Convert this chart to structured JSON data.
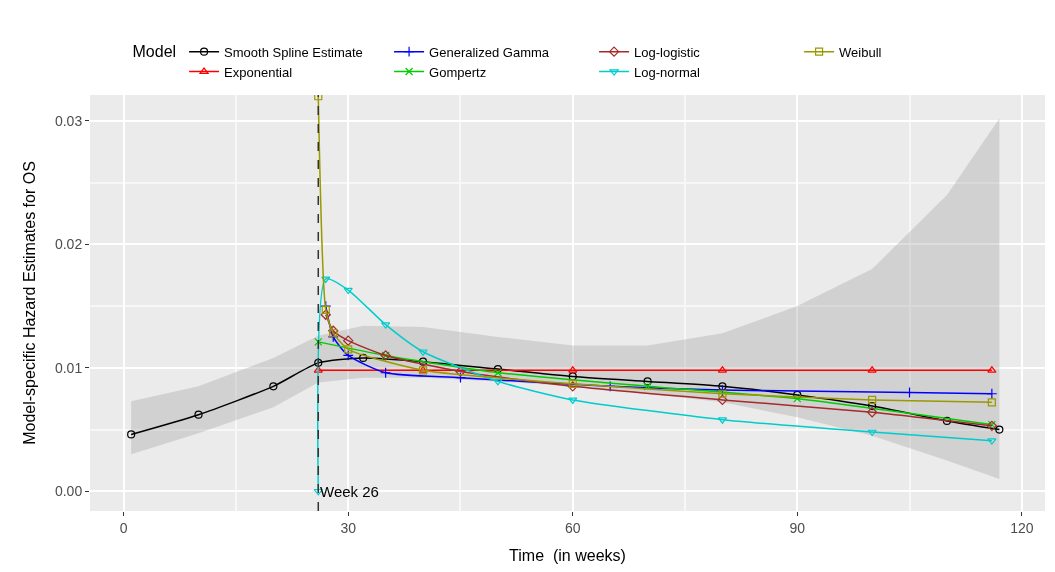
{
  "chart_data": {
    "type": "line",
    "xlabel": "Time  (in weeks)",
    "ylabel": "Model-specific Hazard Estimates for OS",
    "legend_title": "Model",
    "legend": "top",
    "grid": true,
    "xlim": [
      -4.5,
      123.1
    ],
    "ylim": [
      -0.0016,
      0.0321
    ],
    "xticks": [
      0,
      30,
      60,
      90,
      120
    ],
    "yticks": [
      {
        "value": 0,
        "label": "0.00"
      },
      {
        "value": 0.01,
        "label": "0.01"
      },
      {
        "value": 0.02,
        "label": "0.02"
      },
      {
        "value": 0.03,
        "label": "0.03"
      }
    ],
    "series": [
      {
        "name": "Smooth Spline Estimate",
        "color": "#000000",
        "marker": "circle",
        "x": [
          1,
          10,
          20,
          26,
          32,
          40,
          50,
          60,
          70,
          80,
          90,
          100,
          110,
          117
        ],
        "values": [
          0.0046,
          0.0062,
          0.0085,
          0.0104,
          0.0108,
          0.0105,
          0.0099,
          0.0093,
          0.0089,
          0.0085,
          0.0078,
          0.0069,
          0.0057,
          0.005
        ],
        "lower": [
          0.003,
          0.0047,
          0.0068,
          0.0088,
          0.0092,
          0.0092,
          0.0089,
          0.0085,
          0.0079,
          0.0072,
          0.006,
          0.0045,
          0.0025,
          0.001
        ],
        "upper": [
          0.0073,
          0.0085,
          0.0108,
          0.0126,
          0.0134,
          0.0133,
          0.0125,
          0.0118,
          0.0118,
          0.0128,
          0.015,
          0.018,
          0.024,
          0.0302
        ]
      },
      {
        "name": "Exponential",
        "color": "#ff0000",
        "marker": "triangle",
        "x": [
          26,
          40,
          60,
          80,
          100,
          116
        ],
        "values": [
          0.0098,
          0.0098,
          0.0098,
          0.0098,
          0.0098,
          0.0098
        ]
      },
      {
        "name": "Generalized Gamma",
        "color": "#0000ff",
        "marker": "cross",
        "x": [
          27,
          28,
          30,
          35,
          45,
          65,
          80,
          105,
          116
        ],
        "values": [
          0.015,
          0.0125,
          0.011,
          0.0096,
          0.0092,
          0.0085,
          0.0082,
          0.008,
          0.0079
        ]
      },
      {
        "name": "Gompertz",
        "color": "#00cc00",
        "marker": "x",
        "x": [
          26,
          35,
          50,
          70,
          90,
          116
        ],
        "values": [
          0.0121,
          0.011,
          0.0096,
          0.0085,
          0.0075,
          0.0054
        ]
      },
      {
        "name": "Log-logistic",
        "color": "#a52a2a",
        "marker": "diamond",
        "x": [
          27,
          28,
          30,
          35,
          45,
          60,
          80,
          100,
          116
        ],
        "values": [
          0.0143,
          0.013,
          0.0122,
          0.011,
          0.0097,
          0.0085,
          0.0074,
          0.0064,
          0.0053
        ]
      },
      {
        "name": "Log-normal",
        "color": "#00cccc",
        "marker": "triangle-down",
        "x": [
          26,
          27,
          30,
          35,
          40,
          50,
          60,
          80,
          100,
          116
        ],
        "values": [
          0.0,
          0.0172,
          0.0163,
          0.0135,
          0.0113,
          0.0089,
          0.0074,
          0.0058,
          0.0048,
          0.0041
        ]
      },
      {
        "name": "Weibull",
        "color": "#999900",
        "marker": "square",
        "x": [
          26,
          27,
          28,
          30,
          40,
          60,
          80,
          100,
          116
        ],
        "values": [
          0.032,
          0.0147,
          0.0128,
          0.0115,
          0.0098,
          0.0087,
          0.0079,
          0.0074,
          0.0072
        ]
      }
    ],
    "ref_lines": [
      {
        "axis": "x",
        "value": 26,
        "label": "Week 26",
        "line_style": "dashed",
        "color": "#333333"
      }
    ]
  }
}
